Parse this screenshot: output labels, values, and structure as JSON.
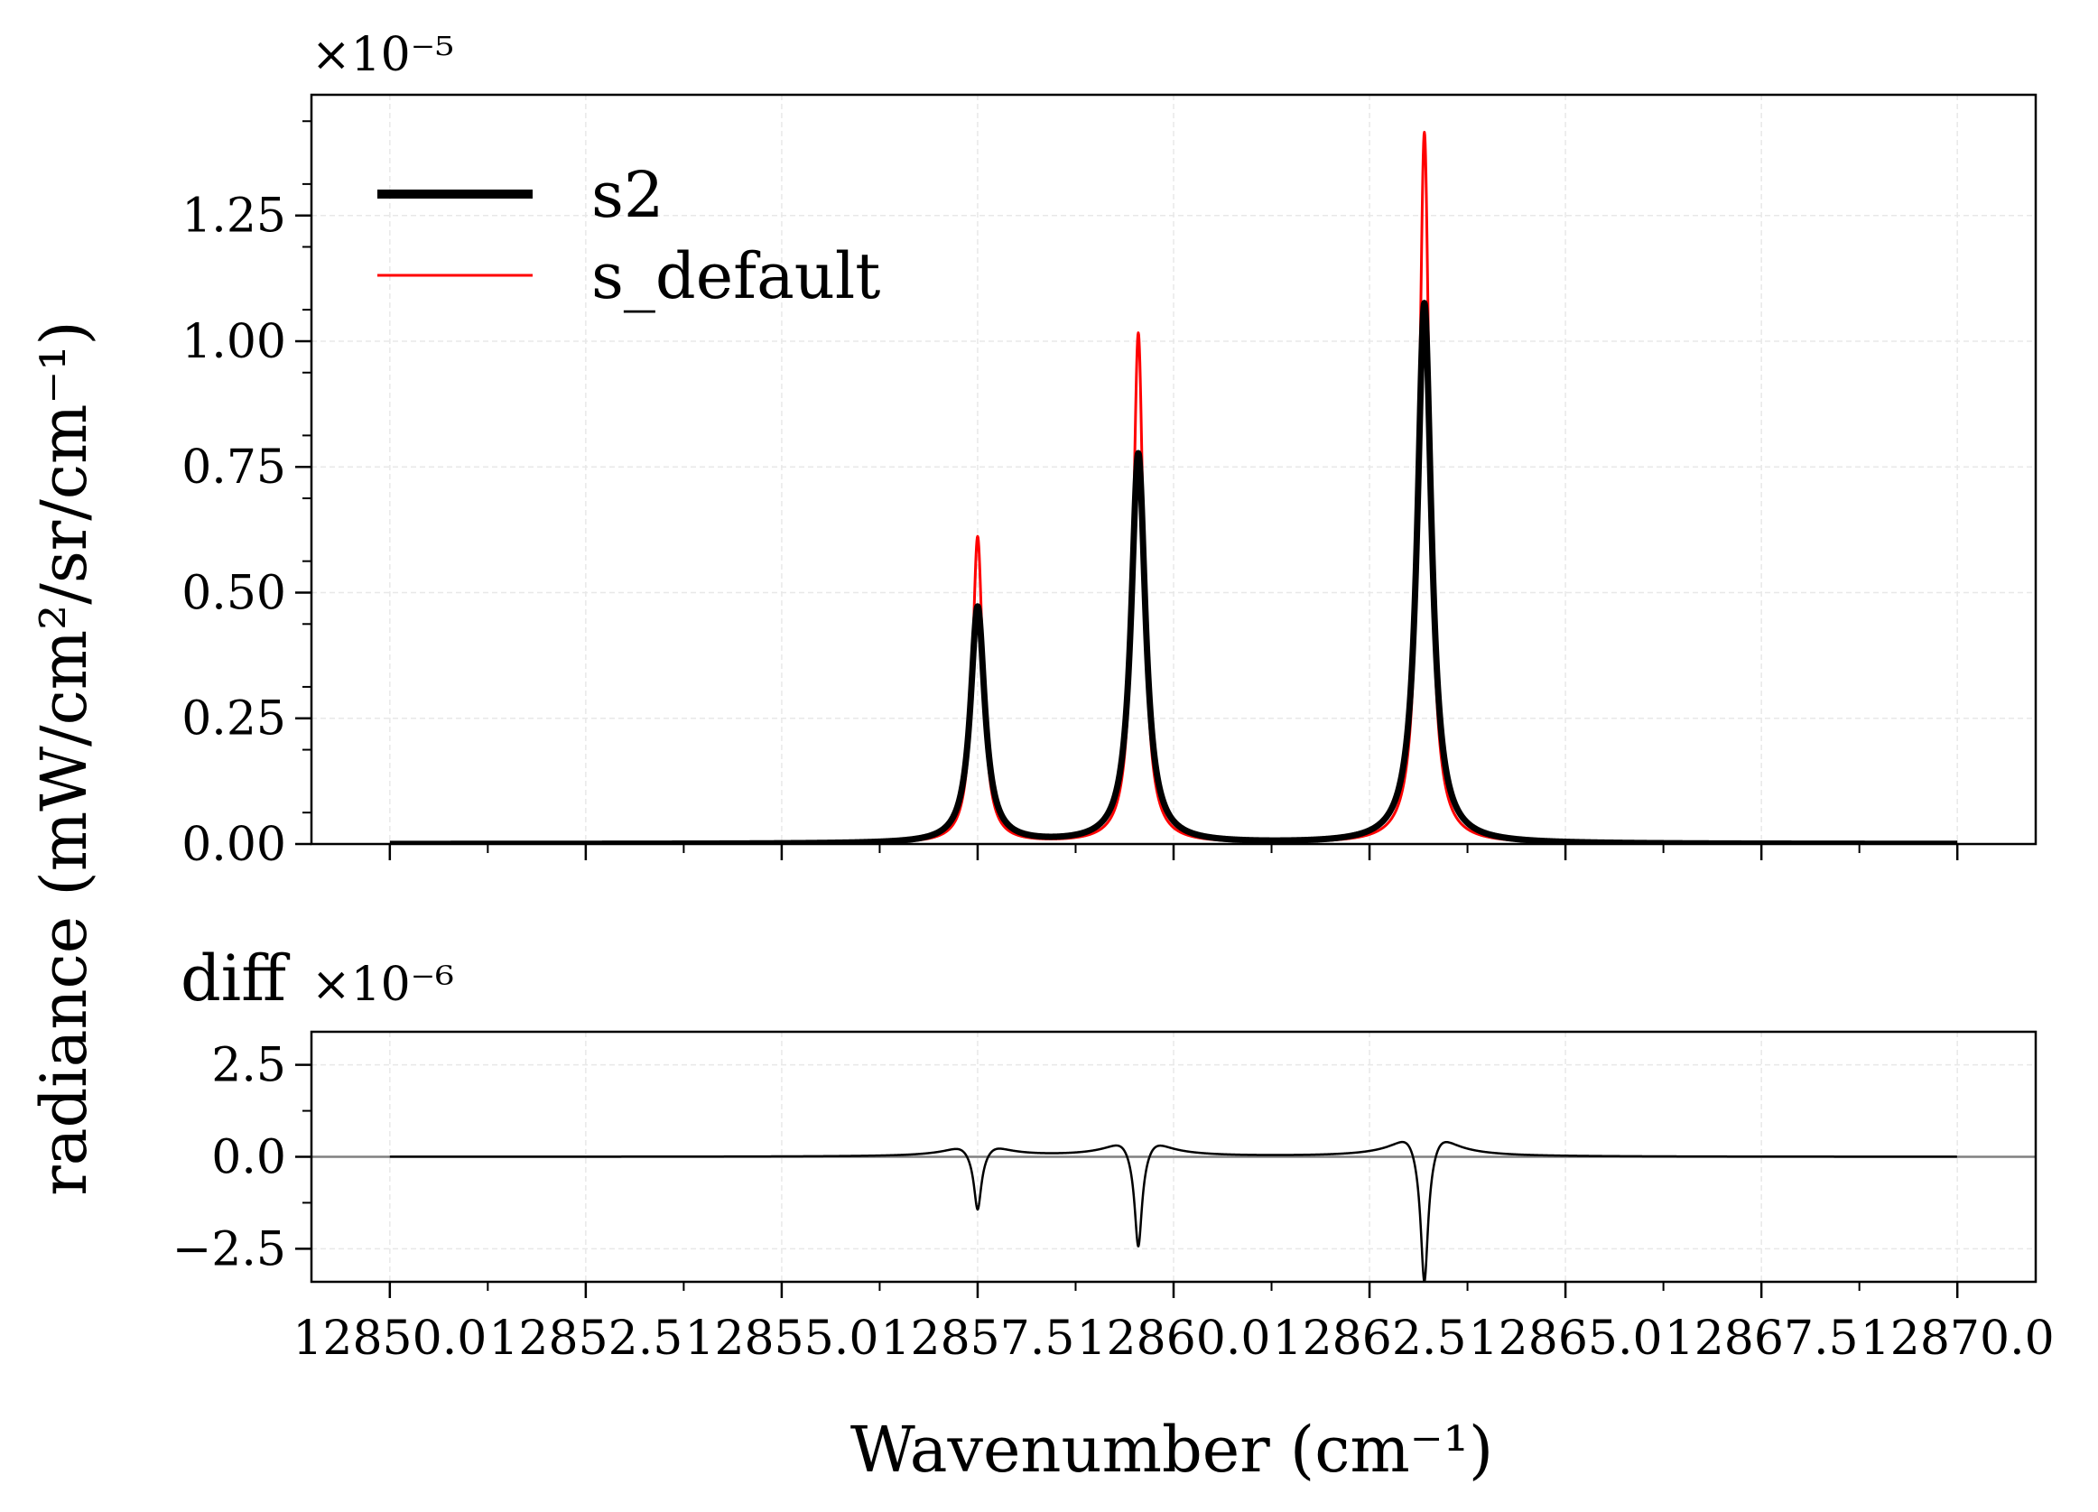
{
  "chart_data": [
    {
      "type": "line",
      "panel": "top",
      "offset_text": "×10⁻⁵",
      "ylabel": "radiance (mW/cm²/sr/cm⁻¹)",
      "xlabel": "",
      "xlim": [
        12849.0,
        12871.0
      ],
      "ylim": [
        0.0,
        1.49
      ],
      "grid": true,
      "legend_position": "top-left",
      "y_ticks": [
        "0.00",
        "0.25",
        "0.50",
        "0.75",
        "1.00",
        "1.25"
      ],
      "y_tick_values": [
        0.0,
        0.25,
        0.5,
        0.75,
        1.0,
        1.25
      ],
      "series": [
        {
          "name": "s2",
          "color": "#000000",
          "x_range": [
            12850.0,
            12870.0
          ],
          "peaks": [
            {
              "x": 12857.5,
              "y": 0.47
            },
            {
              "x": 12859.55,
              "y": 0.775
            },
            {
              "x": 12863.2,
              "y": 1.075
            }
          ],
          "baseline": 0.0,
          "valleys": [
            {
              "x": 12858.7,
              "y": 0.025
            },
            {
              "x": 12861.2,
              "y": 0.015
            }
          ]
        },
        {
          "name": "s_default",
          "color": "#ff0000",
          "x_range": [
            12850.0,
            12870.0
          ],
          "peaks": [
            {
              "x": 12857.5,
              "y": 0.61
            },
            {
              "x": 12859.55,
              "y": 1.015
            },
            {
              "x": 12863.2,
              "y": 1.415
            }
          ],
          "baseline": 0.0,
          "valleys": [
            {
              "x": 12858.7,
              "y": 0.015
            },
            {
              "x": 12861.2,
              "y": 0.005
            }
          ]
        }
      ]
    },
    {
      "type": "line",
      "panel": "bottom",
      "title": "diff",
      "offset_text": "×10⁻⁶",
      "xlabel": "Wavenumber (cm⁻¹)",
      "xlim": [
        12849.0,
        12871.0
      ],
      "ylim": [
        -3.4,
        3.4
      ],
      "grid": true,
      "y_ticks": [
        "−2.5",
        "0.0",
        "2.5"
      ],
      "y_tick_values": [
        -2.5,
        0.0,
        2.5
      ],
      "x_ticks": [
        "12850.0",
        "12852.5",
        "12855.0",
        "12857.5",
        "12860.0",
        "12862.5",
        "12865.0",
        "12867.5",
        "12870.0"
      ],
      "x_tick_values": [
        12850.0,
        12852.5,
        12855.0,
        12857.5,
        12860.0,
        12862.5,
        12865.0,
        12867.5,
        12870.0
      ],
      "zero_line_color": "#808080",
      "series": [
        {
          "name": "",
          "color": "#000000",
          "x_range": [
            12850.0,
            12870.0
          ],
          "features": [
            {
              "x": 12857.5,
              "min": -1.45,
              "side_max": 0.3
            },
            {
              "x": 12859.55,
              "min": -2.45,
              "side_max": 0.45
            },
            {
              "x": 12863.2,
              "min": -3.4,
              "side_max": 0.62
            }
          ]
        }
      ]
    }
  ]
}
